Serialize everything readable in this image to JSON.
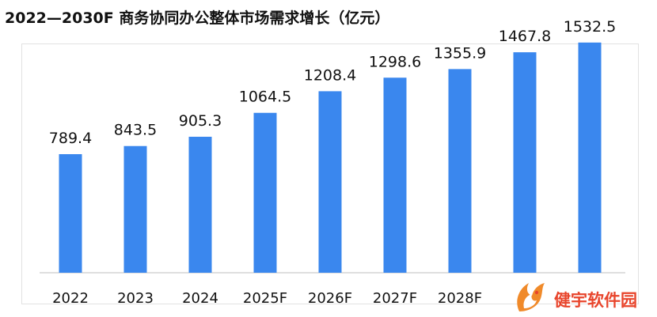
{
  "chart_data": {
    "type": "bar",
    "title": "2022—2030F 商务协同办公整体市场需求增长（亿元）",
    "categories": [
      "2022",
      "2023",
      "2024",
      "2025F",
      "2026F",
      "2027F",
      "2028F",
      "",
      ""
    ],
    "values": [
      789.4,
      843.5,
      905.3,
      1064.5,
      1208.4,
      1298.6,
      1355.9,
      1467.8,
      1532.5
    ],
    "value_labels": [
      "789.4",
      "843.5",
      "905.3",
      "1064.5",
      "1208.4",
      "1298.6",
      "1355.9",
      "1467.8",
      "1532.5"
    ],
    "ylim": [
      0,
      2000
    ],
    "grid": false,
    "bar_color": "#3a87ee",
    "axis_color": "#bfbfbf"
  },
  "watermark": {
    "text": "健宇软件园",
    "color": "#e8452c",
    "icon": "fox-logo-icon"
  }
}
